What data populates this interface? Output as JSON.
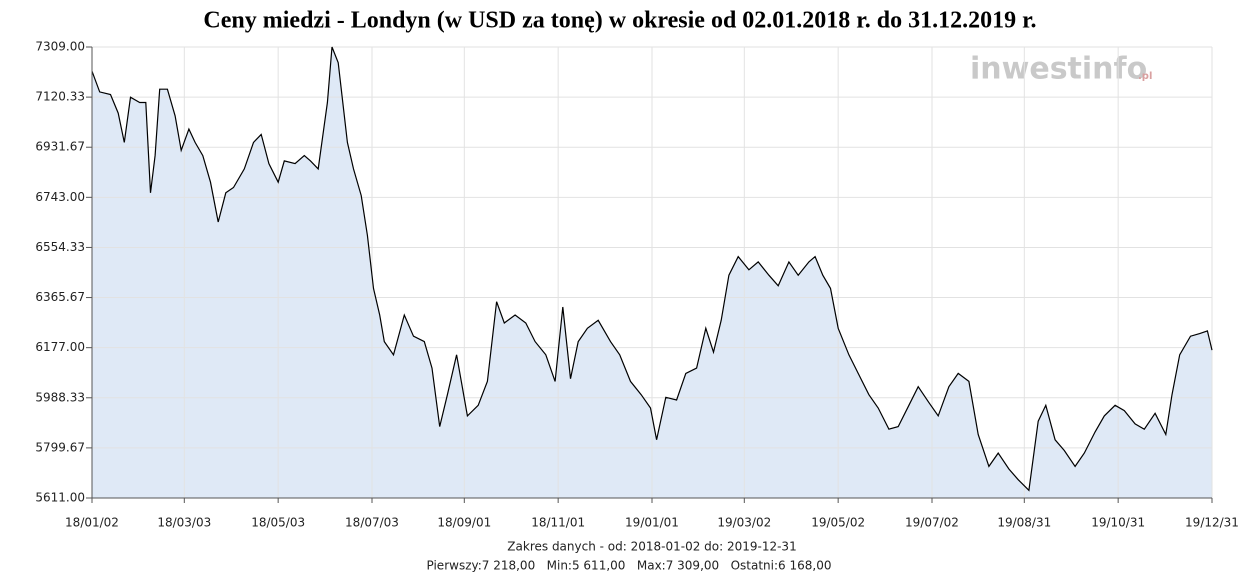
{
  "chart_data": {
    "type": "area",
    "title": "Ceny miedzi - Londyn (w USD za tonę)  w okresie od 02.01.2018 r. do 31.12.2019 r.",
    "watermark": {
      "text": "inwestinfo",
      "suffix": ".pl"
    },
    "footer": [
      "Zakres danych - od: 2018-01-02 do: 2019-12-31",
      "Pierwszy:7 218,00   Min:5 611,00   Max:7 309,00   Ostatni:6 168,00"
    ],
    "x": [
      "2018-01-02",
      "2018-01-07",
      "2018-01-14",
      "2018-01-19",
      "2018-01-23",
      "2018-01-27",
      "2018-02-02",
      "2018-02-06",
      "2018-02-09",
      "2018-02-12",
      "2018-02-15",
      "2018-02-20",
      "2018-02-25",
      "2018-03-01",
      "2018-03-06",
      "2018-03-10",
      "2018-03-15",
      "2018-03-20",
      "2018-03-25",
      "2018-03-30",
      "2018-04-04",
      "2018-04-11",
      "2018-04-17",
      "2018-04-22",
      "2018-04-27",
      "2018-05-03",
      "2018-05-07",
      "2018-05-14",
      "2018-05-20",
      "2018-05-24",
      "2018-05-29",
      "2018-06-04",
      "2018-06-07",
      "2018-06-11",
      "2018-06-17",
      "2018-06-21",
      "2018-06-26",
      "2018-06-30",
      "2018-07-04",
      "2018-07-08",
      "2018-07-11",
      "2018-07-17",
      "2018-07-24",
      "2018-07-30",
      "2018-08-06",
      "2018-08-11",
      "2018-08-16",
      "2018-08-21",
      "2018-08-27",
      "2018-09-03",
      "2018-09-10",
      "2018-09-16",
      "2018-09-22",
      "2018-09-27",
      "2018-10-04",
      "2018-10-11",
      "2018-10-17",
      "2018-10-24",
      "2018-10-30",
      "2018-11-04",
      "2018-11-09",
      "2018-11-14",
      "2018-11-20",
      "2018-11-27",
      "2018-12-05",
      "2018-12-11",
      "2018-12-18",
      "2018-12-25",
      "2018-12-31",
      "2019-01-04",
      "2019-01-10",
      "2019-01-17",
      "2019-01-23",
      "2019-01-30",
      "2019-02-05",
      "2019-02-10",
      "2019-02-15",
      "2019-02-20",
      "2019-02-26",
      "2019-03-05",
      "2019-03-11",
      "2019-03-18",
      "2019-03-24",
      "2019-03-31",
      "2019-04-06",
      "2019-04-13",
      "2019-04-17",
      "2019-04-22",
      "2019-04-27",
      "2019-05-02",
      "2019-05-09",
      "2019-05-15",
      "2019-05-22",
      "2019-05-28",
      "2019-06-04",
      "2019-06-10",
      "2019-06-17",
      "2019-06-23",
      "2019-06-30",
      "2019-07-06",
      "2019-07-13",
      "2019-07-19",
      "2019-07-26",
      "2019-08-01",
      "2019-08-08",
      "2019-08-14",
      "2019-08-21",
      "2019-08-27",
      "2019-09-03",
      "2019-09-09",
      "2019-09-14",
      "2019-09-20",
      "2019-09-26",
      "2019-10-03",
      "2019-10-09",
      "2019-10-16",
      "2019-10-22",
      "2019-10-29",
      "2019-11-04",
      "2019-11-11",
      "2019-11-17",
      "2019-11-24",
      "2019-12-01",
      "2019-12-05",
      "2019-12-10",
      "2019-12-17",
      "2019-12-23",
      "2019-12-28",
      "2019-12-31"
    ],
    "series": [
      {
        "name": "Miedź",
        "color": "#000000",
        "fill": "#dfe9f6",
        "values": [
          7218,
          7140,
          7130,
          7060,
          6950,
          7120,
          7100,
          7100,
          6760,
          6900,
          7150,
          7150,
          7050,
          6920,
          7000,
          6950,
          6900,
          6800,
          6650,
          6760,
          6780,
          6850,
          6950,
          6980,
          6870,
          6800,
          6880,
          6870,
          6900,
          6880,
          6850,
          7100,
          7309,
          7250,
          6950,
          6850,
          6750,
          6600,
          6400,
          6300,
          6200,
          6150,
          6300,
          6220,
          6200,
          6100,
          5880,
          6000,
          6150,
          5920,
          5960,
          6050,
          6350,
          6270,
          6300,
          6270,
          6200,
          6150,
          6050,
          6330,
          6060,
          6200,
          6250,
          6280,
          6200,
          6150,
          6050,
          6000,
          5950,
          5830,
          5990,
          5980,
          6080,
          6100,
          6250,
          6160,
          6280,
          6450,
          6520,
          6470,
          6500,
          6450,
          6410,
          6500,
          6450,
          6500,
          6520,
          6450,
          6400,
          6250,
          6150,
          6080,
          6000,
          5950,
          5870,
          5880,
          5960,
          6030,
          5970,
          5920,
          6030,
          6080,
          6050,
          5850,
          5730,
          5780,
          5720,
          5680,
          5640,
          5900,
          5960,
          5830,
          5790,
          5730,
          5780,
          5860,
          5920,
          5960,
          5940,
          5890,
          5870,
          5930,
          5850,
          6000,
          6150,
          6220,
          6230,
          6240,
          6168
        ]
      }
    ],
    "xlim": [
      "2018-01-02",
      "2019-12-31"
    ],
    "xticks": [
      {
        "value": "2018-01-02",
        "label": "18/01/02"
      },
      {
        "value": "2018-03-03",
        "label": "18/03/03"
      },
      {
        "value": "2018-05-03",
        "label": "18/05/03"
      },
      {
        "value": "2018-07-03",
        "label": "18/07/03"
      },
      {
        "value": "2018-09-01",
        "label": "18/09/01"
      },
      {
        "value": "2018-11-01",
        "label": "18/11/01"
      },
      {
        "value": "2019-01-01",
        "label": "19/01/01"
      },
      {
        "value": "2019-03-02",
        "label": "19/03/02"
      },
      {
        "value": "2019-05-02",
        "label": "19/05/02"
      },
      {
        "value": "2019-07-02",
        "label": "19/07/02"
      },
      {
        "value": "2019-08-31",
        "label": "19/08/31"
      },
      {
        "value": "2019-10-31",
        "label": "19/10/31"
      },
      {
        "value": "2019-12-31",
        "label": "19/12/31"
      }
    ],
    "ylim": [
      5611,
      7309
    ],
    "yticks": [
      {
        "value": 7309,
        "label": "7309.00"
      },
      7120.33,
      6931.67,
      {
        "value": 6743,
        "label": "6743.00"
      },
      6554.33,
      6365.67,
      {
        "value": 6177,
        "label": "6177.00"
      },
      5988.33,
      5799.67,
      {
        "value": 5611,
        "label": "5611.00"
      }
    ],
    "grid": true
  }
}
